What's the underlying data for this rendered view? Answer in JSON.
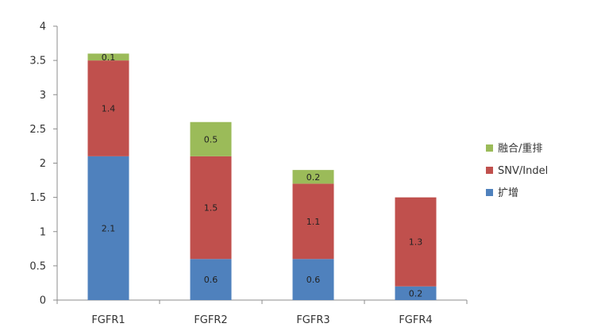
{
  "chart_data": {
    "type": "bar",
    "stacked": true,
    "categories": [
      "FGFR1",
      "FGFR2",
      "FGFR3",
      "FGFR4"
    ],
    "series": [
      {
        "name": "扩增",
        "color": "#4f81bd",
        "values": [
          2.1,
          0.6,
          0.6,
          0.2
        ]
      },
      {
        "name": "SNV/Indel",
        "color": "#c0504d",
        "values": [
          1.4,
          1.5,
          1.1,
          1.3
        ]
      },
      {
        "name": "融合/重排",
        "color": "#9bbb59",
        "values": [
          0.1,
          0.5,
          0.2,
          0
        ]
      }
    ],
    "data_labels": [
      [
        "2.1",
        "0.6",
        "0.6",
        "0.2"
      ],
      [
        "1.4",
        "1.5",
        "1.1",
        "1.3"
      ],
      [
        "0.1",
        "0.5",
        "0.2",
        ""
      ]
    ],
    "ylim": [
      0,
      4
    ],
    "yticks": [
      0,
      0.5,
      1,
      1.5,
      2,
      2.5,
      3,
      3.5,
      4
    ],
    "ytick_labels": [
      "0",
      "0.5",
      "1",
      "1.5",
      "2",
      "2.5",
      "3",
      "3.5",
      "4"
    ],
    "legend_order": [
      "融合/重排",
      "SNV/Indel",
      "扩增"
    ],
    "legend_position": "right",
    "grid": false
  }
}
